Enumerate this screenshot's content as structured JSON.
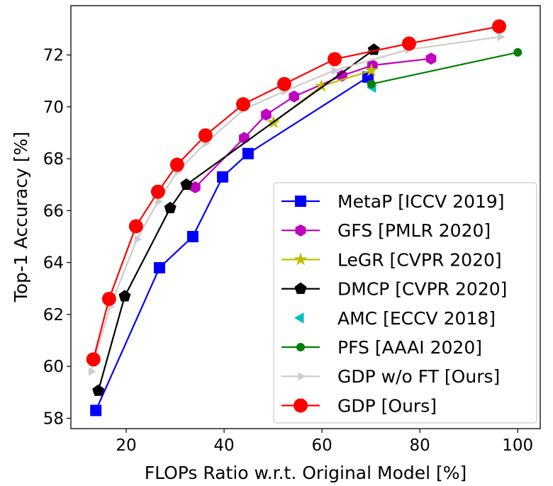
{
  "chart_data": {
    "type": "line",
    "title": "",
    "xlabel": "FLOPs Ratio w.r.t. Original Model [%]",
    "ylabel": "Top-1 Accuracy [%]",
    "xlim": [
      8.7,
      104.6
    ],
    "ylim": [
      57.6,
      73.9
    ],
    "xticks": [
      20,
      40,
      60,
      80,
      100
    ],
    "yticks": [
      58,
      60,
      62,
      64,
      66,
      68,
      70,
      72
    ],
    "grid": false,
    "legend_position": "bottom-right",
    "series": [
      {
        "name": "MetaP [ICCV 2019]",
        "color": "#0000ff",
        "marker": "square",
        "x": [
          13.8,
          26.8,
          33.6,
          39.7,
          44.9,
          69.4
        ],
        "y": [
          58.3,
          63.8,
          65.0,
          67.3,
          68.2,
          71.15
        ]
      },
      {
        "name": "GFS [PMLR 2020]",
        "color": "#bf00bf",
        "marker": "hexagon",
        "x": [
          34.1,
          44.1,
          48.6,
          54.3,
          64.1,
          70.3,
          82.3
        ],
        "y": [
          66.9,
          68.8,
          69.7,
          70.4,
          71.2,
          71.6,
          71.86
        ]
      },
      {
        "name": "LeGR [CVPR 2020]",
        "color": "#bfbf00",
        "marker": "star",
        "x": [
          50.1,
          59.9,
          70.1
        ],
        "y": [
          69.4,
          70.8,
          71.4
        ]
      },
      {
        "name": "DMCP [CVPR 2020]",
        "color": "#000000",
        "marker": "pentagon",
        "x": [
          14.3,
          19.7,
          29.0,
          32.3,
          70.6
        ],
        "y": [
          59.06,
          62.7,
          66.1,
          67.0,
          72.2
        ]
      },
      {
        "name": "AMC [ECCV 2018]",
        "color": "#00bfbf",
        "marker": "triangle-left",
        "noline": true,
        "x": [
          70.4
        ],
        "y": [
          70.75
        ]
      },
      {
        "name": "PFS [AAAI 2020]",
        "color": "#008000",
        "marker": "circle-small",
        "x": [
          70.1,
          100.0
        ],
        "y": [
          70.88,
          72.1
        ]
      },
      {
        "name": "GDP w/o FT [Ours]",
        "color": "#cccccc",
        "marker": "triangle-right",
        "x": [
          12.8,
          16.7,
          22.2,
          26.5,
          30.4,
          36.2,
          44.0,
          52.3,
          62.5,
          77.5,
          96.4
        ],
        "y": [
          59.8,
          62.3,
          64.9,
          66.35,
          67.5,
          68.6,
          69.9,
          70.6,
          71.4,
          72.2,
          72.7
        ]
      },
      {
        "name": "GDP [Ours]",
        "color": "#ff0000",
        "marker": "circle-large",
        "x": [
          13.3,
          16.5,
          22.0,
          26.5,
          30.4,
          36.2,
          43.9,
          52.3,
          62.6,
          77.8,
          96.2
        ],
        "y": [
          60.27,
          62.6,
          65.4,
          66.73,
          67.77,
          68.9,
          70.1,
          70.88,
          71.84,
          72.44,
          73.1
        ]
      }
    ]
  }
}
